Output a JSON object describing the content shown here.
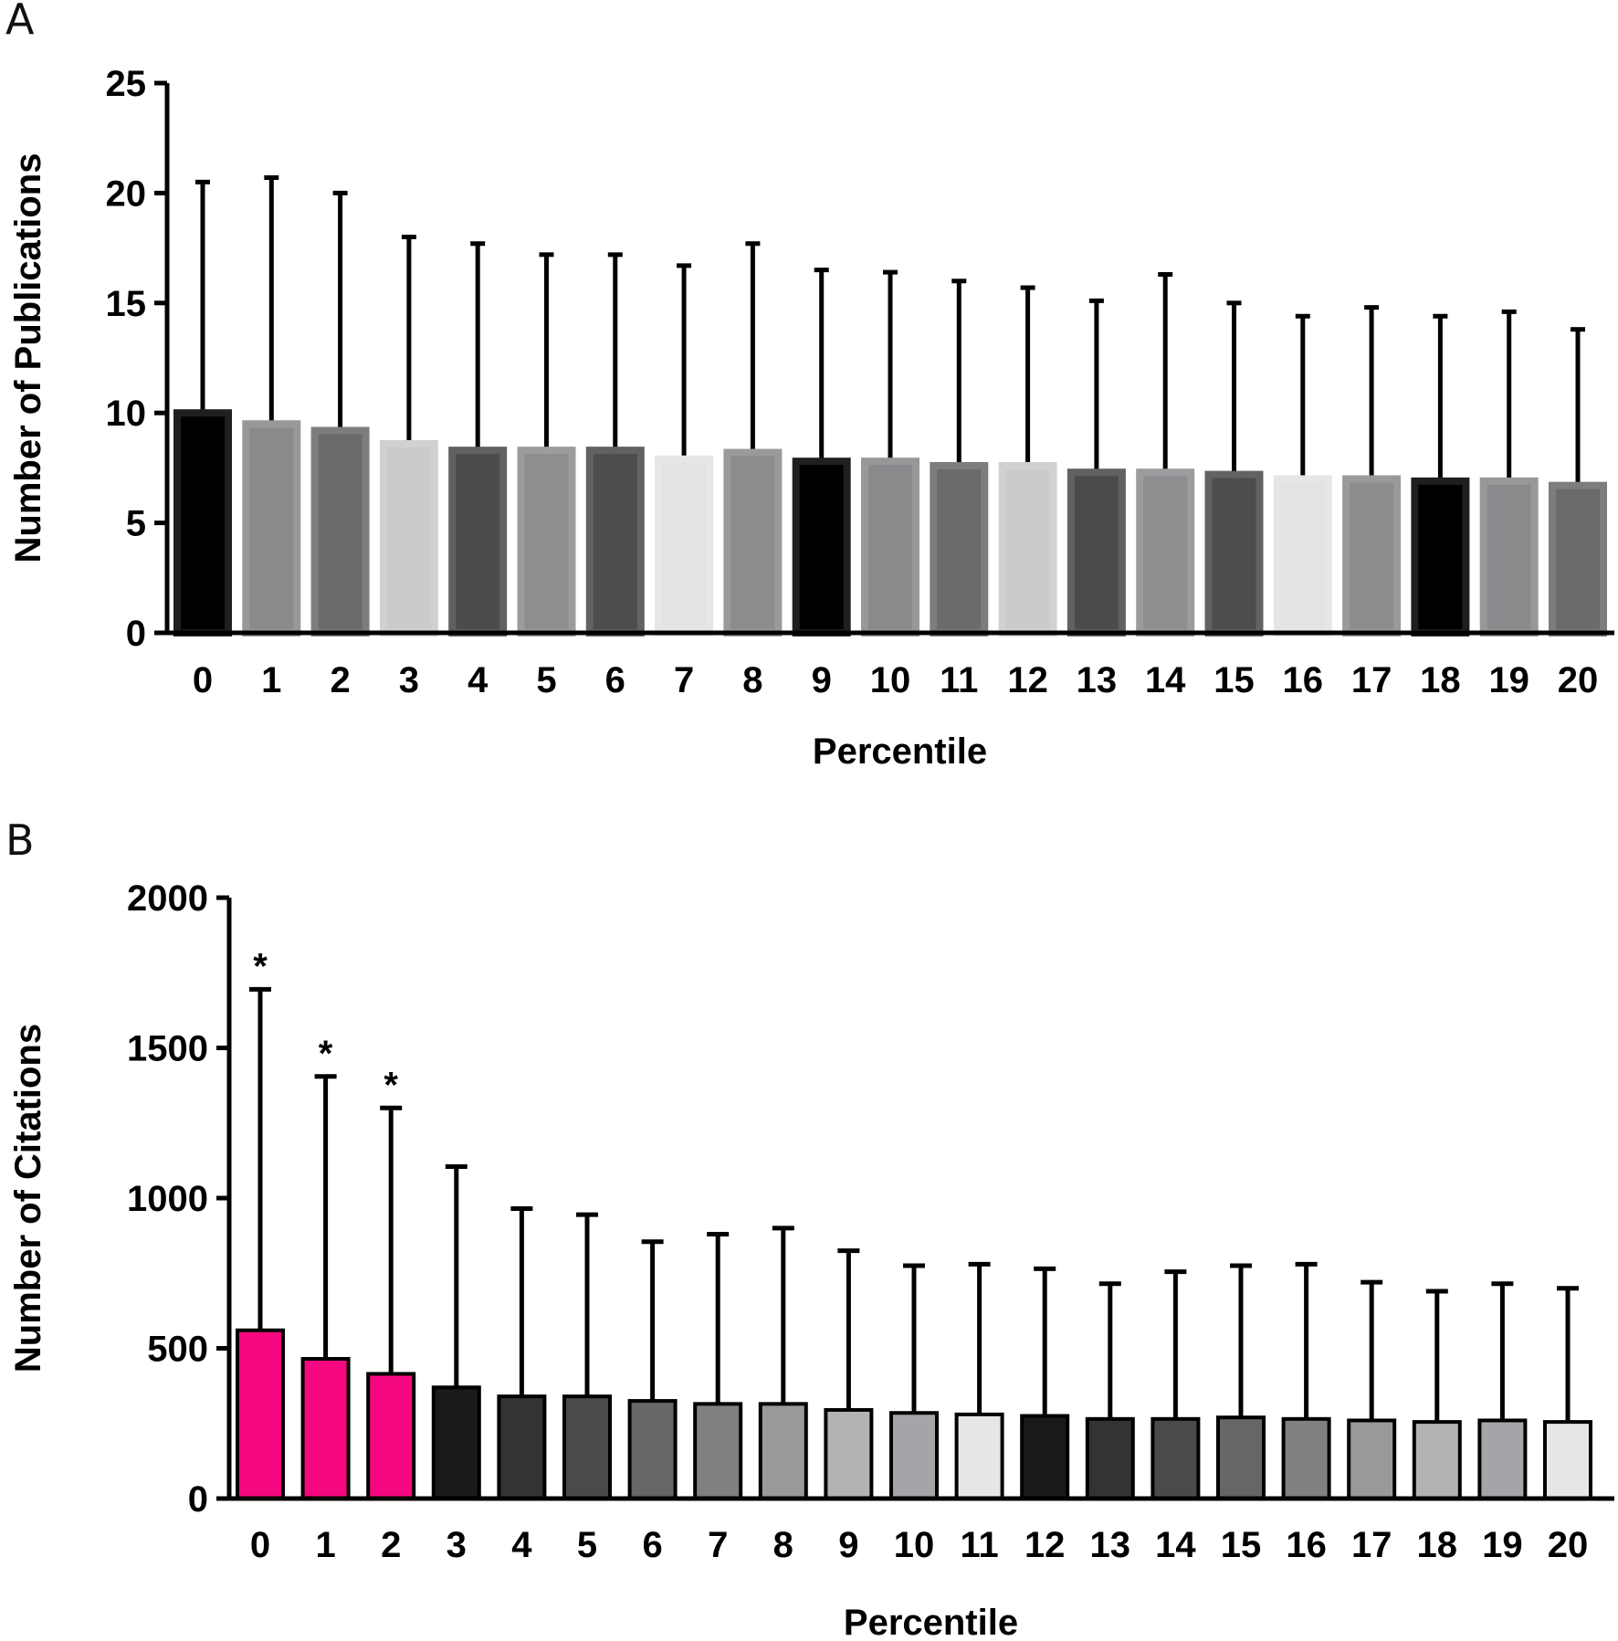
{
  "panels": [
    {
      "letter": "A"
    },
    {
      "letter": "B"
    }
  ],
  "chart_data": [
    {
      "type": "bar",
      "panel": "A",
      "xlabel": "Percentile",
      "ylabel": "Number of Publications",
      "ylim": [
        0,
        25
      ],
      "yticks": [
        0,
        5,
        10,
        15,
        20,
        25
      ],
      "categories": [
        "0",
        "1",
        "2",
        "3",
        "4",
        "5",
        "6",
        "7",
        "8",
        "9",
        "10",
        "11",
        "12",
        "13",
        "14",
        "15",
        "16",
        "17",
        "18",
        "19",
        "20"
      ],
      "values": [
        10.0,
        9.5,
        9.2,
        8.6,
        8.3,
        8.3,
        8.3,
        7.9,
        8.2,
        7.8,
        7.8,
        7.6,
        7.6,
        7.3,
        7.3,
        7.2,
        7.0,
        7.0,
        6.9,
        6.9,
        6.7
      ],
      "error_upper": [
        20.5,
        20.7,
        20.0,
        18.0,
        17.7,
        17.2,
        17.2,
        16.7,
        17.7,
        16.5,
        16.4,
        16.0,
        15.7,
        15.1,
        16.3,
        15.0,
        14.4,
        14.8,
        14.4,
        14.6,
        13.8
      ],
      "colors": [
        "#000000",
        "#8a8a8d",
        "#6b6b6b",
        "#cbcbcb",
        "#4b4b4b",
        "#8e8e91",
        "#4d4d4d",
        "#e3e3e3",
        "#8c8c8f",
        "#000000",
        "#8a8a8d",
        "#6b6b6b",
        "#cbcbcb",
        "#4b4b4b",
        "#8e8e91",
        "#4d4d4d",
        "#e3e3e3",
        "#8c8c8f",
        "#000000",
        "#8a8a8d",
        "#6b6b6b"
      ]
    },
    {
      "type": "bar",
      "panel": "B",
      "xlabel": "Percentile",
      "ylabel": "Number of Citations",
      "ylim": [
        0,
        2000
      ],
      "yticks": [
        0,
        500,
        1000,
        1500,
        2000
      ],
      "categories": [
        "0",
        "1",
        "2",
        "3",
        "4",
        "5",
        "6",
        "7",
        "8",
        "9",
        "10",
        "11",
        "12",
        "13",
        "14",
        "15",
        "16",
        "17",
        "18",
        "19",
        "20"
      ],
      "values": [
        560,
        465,
        415,
        370,
        340,
        340,
        325,
        315,
        315,
        295,
        285,
        280,
        275,
        265,
        265,
        270,
        265,
        260,
        255,
        260,
        255
      ],
      "error_upper": [
        1695,
        1405,
        1300,
        1105,
        965,
        945,
        855,
        880,
        900,
        825,
        775,
        780,
        765,
        715,
        755,
        775,
        780,
        720,
        690,
        715,
        700
      ],
      "annotations": [
        "*",
        "*",
        "*",
        "",
        "",
        "",
        "",
        "",
        "",
        "",
        "",
        "",
        "",
        "",
        "",
        "",
        "",
        "",
        "",
        "",
        ""
      ],
      "colors": [
        "#f5077f",
        "#f5077f",
        "#f5077f",
        "#1a1a1a",
        "#333333",
        "#4a4a4a",
        "#666666",
        "#808080",
        "#999999",
        "#b3b3b3",
        "#a5a5a9",
        "#e6e6e6",
        "#1a1a1a",
        "#333333",
        "#4a4a4a",
        "#666666",
        "#808080",
        "#999999",
        "#b3b3b3",
        "#a5a5a9",
        "#e6e6e6"
      ]
    }
  ]
}
